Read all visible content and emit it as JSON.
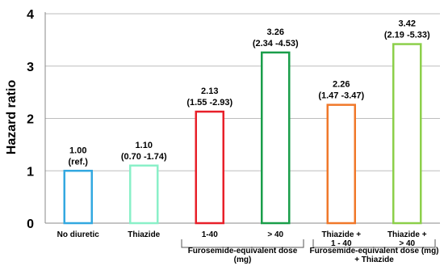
{
  "chart_data": {
    "type": "bar",
    "ylabel": "Hazard ratio",
    "ylim": [
      0,
      4
    ],
    "yticks": [
      "0",
      "1",
      "2",
      "3",
      "4"
    ],
    "grid": true,
    "bar_style": "outlined",
    "categories": [
      [
        "No diuretic"
      ],
      [
        "Thiazide"
      ],
      [
        "1-40"
      ],
      [
        "> 40"
      ],
      [
        "Thiazide +",
        "1 - 40"
      ],
      [
        "Thiazide +",
        "> 40"
      ]
    ],
    "values": [
      1.0,
      1.1,
      2.13,
      3.26,
      2.26,
      3.42
    ],
    "data_labels": [
      [
        "1.00",
        "(ref.)"
      ],
      [
        "1.10",
        "(0.70 -1.74)"
      ],
      [
        "2.13",
        "(1.55 -2.93)"
      ],
      [
        "3.26",
        "(2.34 -4.53)"
      ],
      [
        "2.26",
        "(1.47 -3.47)"
      ],
      [
        "3.42",
        "(2.19 -5.33)"
      ]
    ],
    "colors": [
      "#33a8e0",
      "#8af0c8",
      "#e8202a",
      "#1a9e4a",
      "#f0782a",
      "#8ccf4a"
    ],
    "groups": [
      {
        "lines": [
          "Furosemide-equivalent dose",
          "(mg)"
        ],
        "categories": [
          2,
          3
        ]
      },
      {
        "lines": [
          "Furosemide-equivalent dose (mg)",
          "+ Thiazide"
        ],
        "categories": [
          4,
          5
        ]
      }
    ]
  }
}
